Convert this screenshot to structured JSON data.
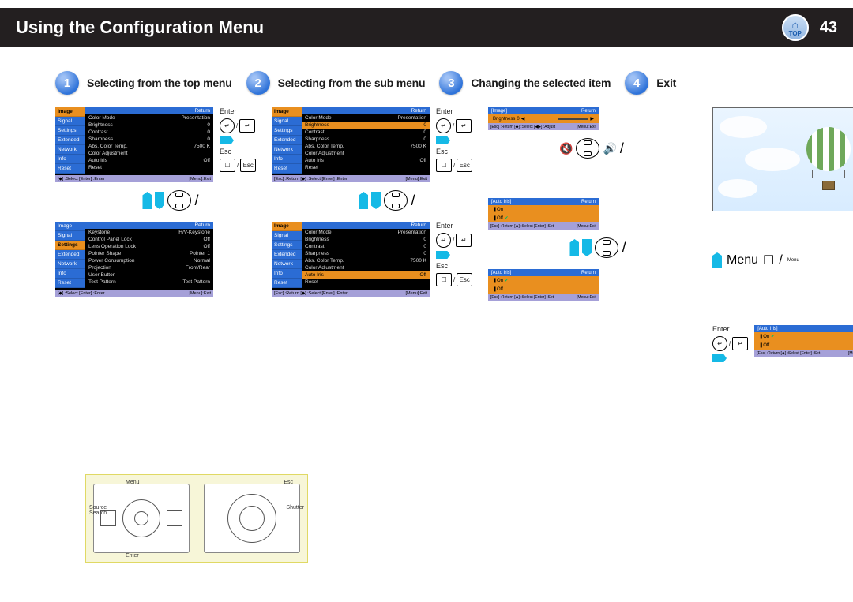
{
  "header": {
    "title": "Using the Configuration Menu",
    "page_number": "43",
    "top_label": "TOP"
  },
  "steps": [
    {
      "n": "1",
      "label": "Selecting from the top menu"
    },
    {
      "n": "2",
      "label": "Selecting from the sub menu"
    },
    {
      "n": "3",
      "label": "Changing the selected item"
    },
    {
      "n": "4",
      "label": "Exit"
    }
  ],
  "menu_tabs": [
    "Image",
    "Signal",
    "Settings",
    "Extended",
    "Network",
    "Info",
    "Reset"
  ],
  "osd": {
    "return": "Return",
    "image_rows": [
      [
        "Color Mode",
        "Presentation"
      ],
      [
        "Brightness",
        "0"
      ],
      [
        "Contrast",
        "0"
      ],
      [
        "Sharpness",
        "0"
      ],
      [
        "Abs. Color Temp.",
        "7500 K"
      ],
      [
        "Color Adjustment",
        ""
      ],
      [
        "Auto Iris",
        "Off"
      ],
      [
        "Reset",
        ""
      ]
    ],
    "settings_rows": [
      [
        "Keystone",
        "H/V-Keystone"
      ],
      [
        "Control Panel Lock",
        "Off"
      ],
      [
        "Lens Operation Lock",
        "Off"
      ],
      [
        "Pointer Shape",
        "Pointer 1"
      ],
      [
        "Power Consumption",
        "Normal"
      ],
      [
        "Projection",
        "Front/Rear"
      ],
      [
        "User Button",
        ""
      ],
      [
        "Test Pattern",
        "Test Pattern"
      ]
    ],
    "footer_left_a": "[◆] :Select  [Enter] :Enter",
    "footer_left_b": "[Esc] :Return  [◆] :Select  [Enter] :Enter",
    "footer_right": "[Menu]:Exit"
  },
  "sub_brightness": {
    "title": "[Image]",
    "return": "Return",
    "label": "Brightness",
    "value": "0",
    "footer_left": "[Esc] :Return  [◆] :Select  [◀▶] :Adjust",
    "footer_right": "[Menu]:Exit"
  },
  "sub_autoiris": {
    "title": "[Auto Iris]",
    "return": "Return",
    "on": "On",
    "off": "Off",
    "footer_left": "[Esc] :Return  [◆] :Select  [Enter] :Set",
    "footer_right": "[Menu]:Exit"
  },
  "ctrl": {
    "enter": "Enter",
    "esc": "Esc",
    "menu": "Menu"
  },
  "remote_labels": {
    "menu": "Menu",
    "esc": "Esc",
    "source": "Source\nSearch",
    "enter": "Enter",
    "shutter": "Shutter"
  },
  "colors": {
    "orange": "#e98f1f",
    "blue": "#2b6cd4",
    "cyan": "#15b9e6",
    "purple_foot": "#a5a0d8",
    "black": "#000000"
  }
}
